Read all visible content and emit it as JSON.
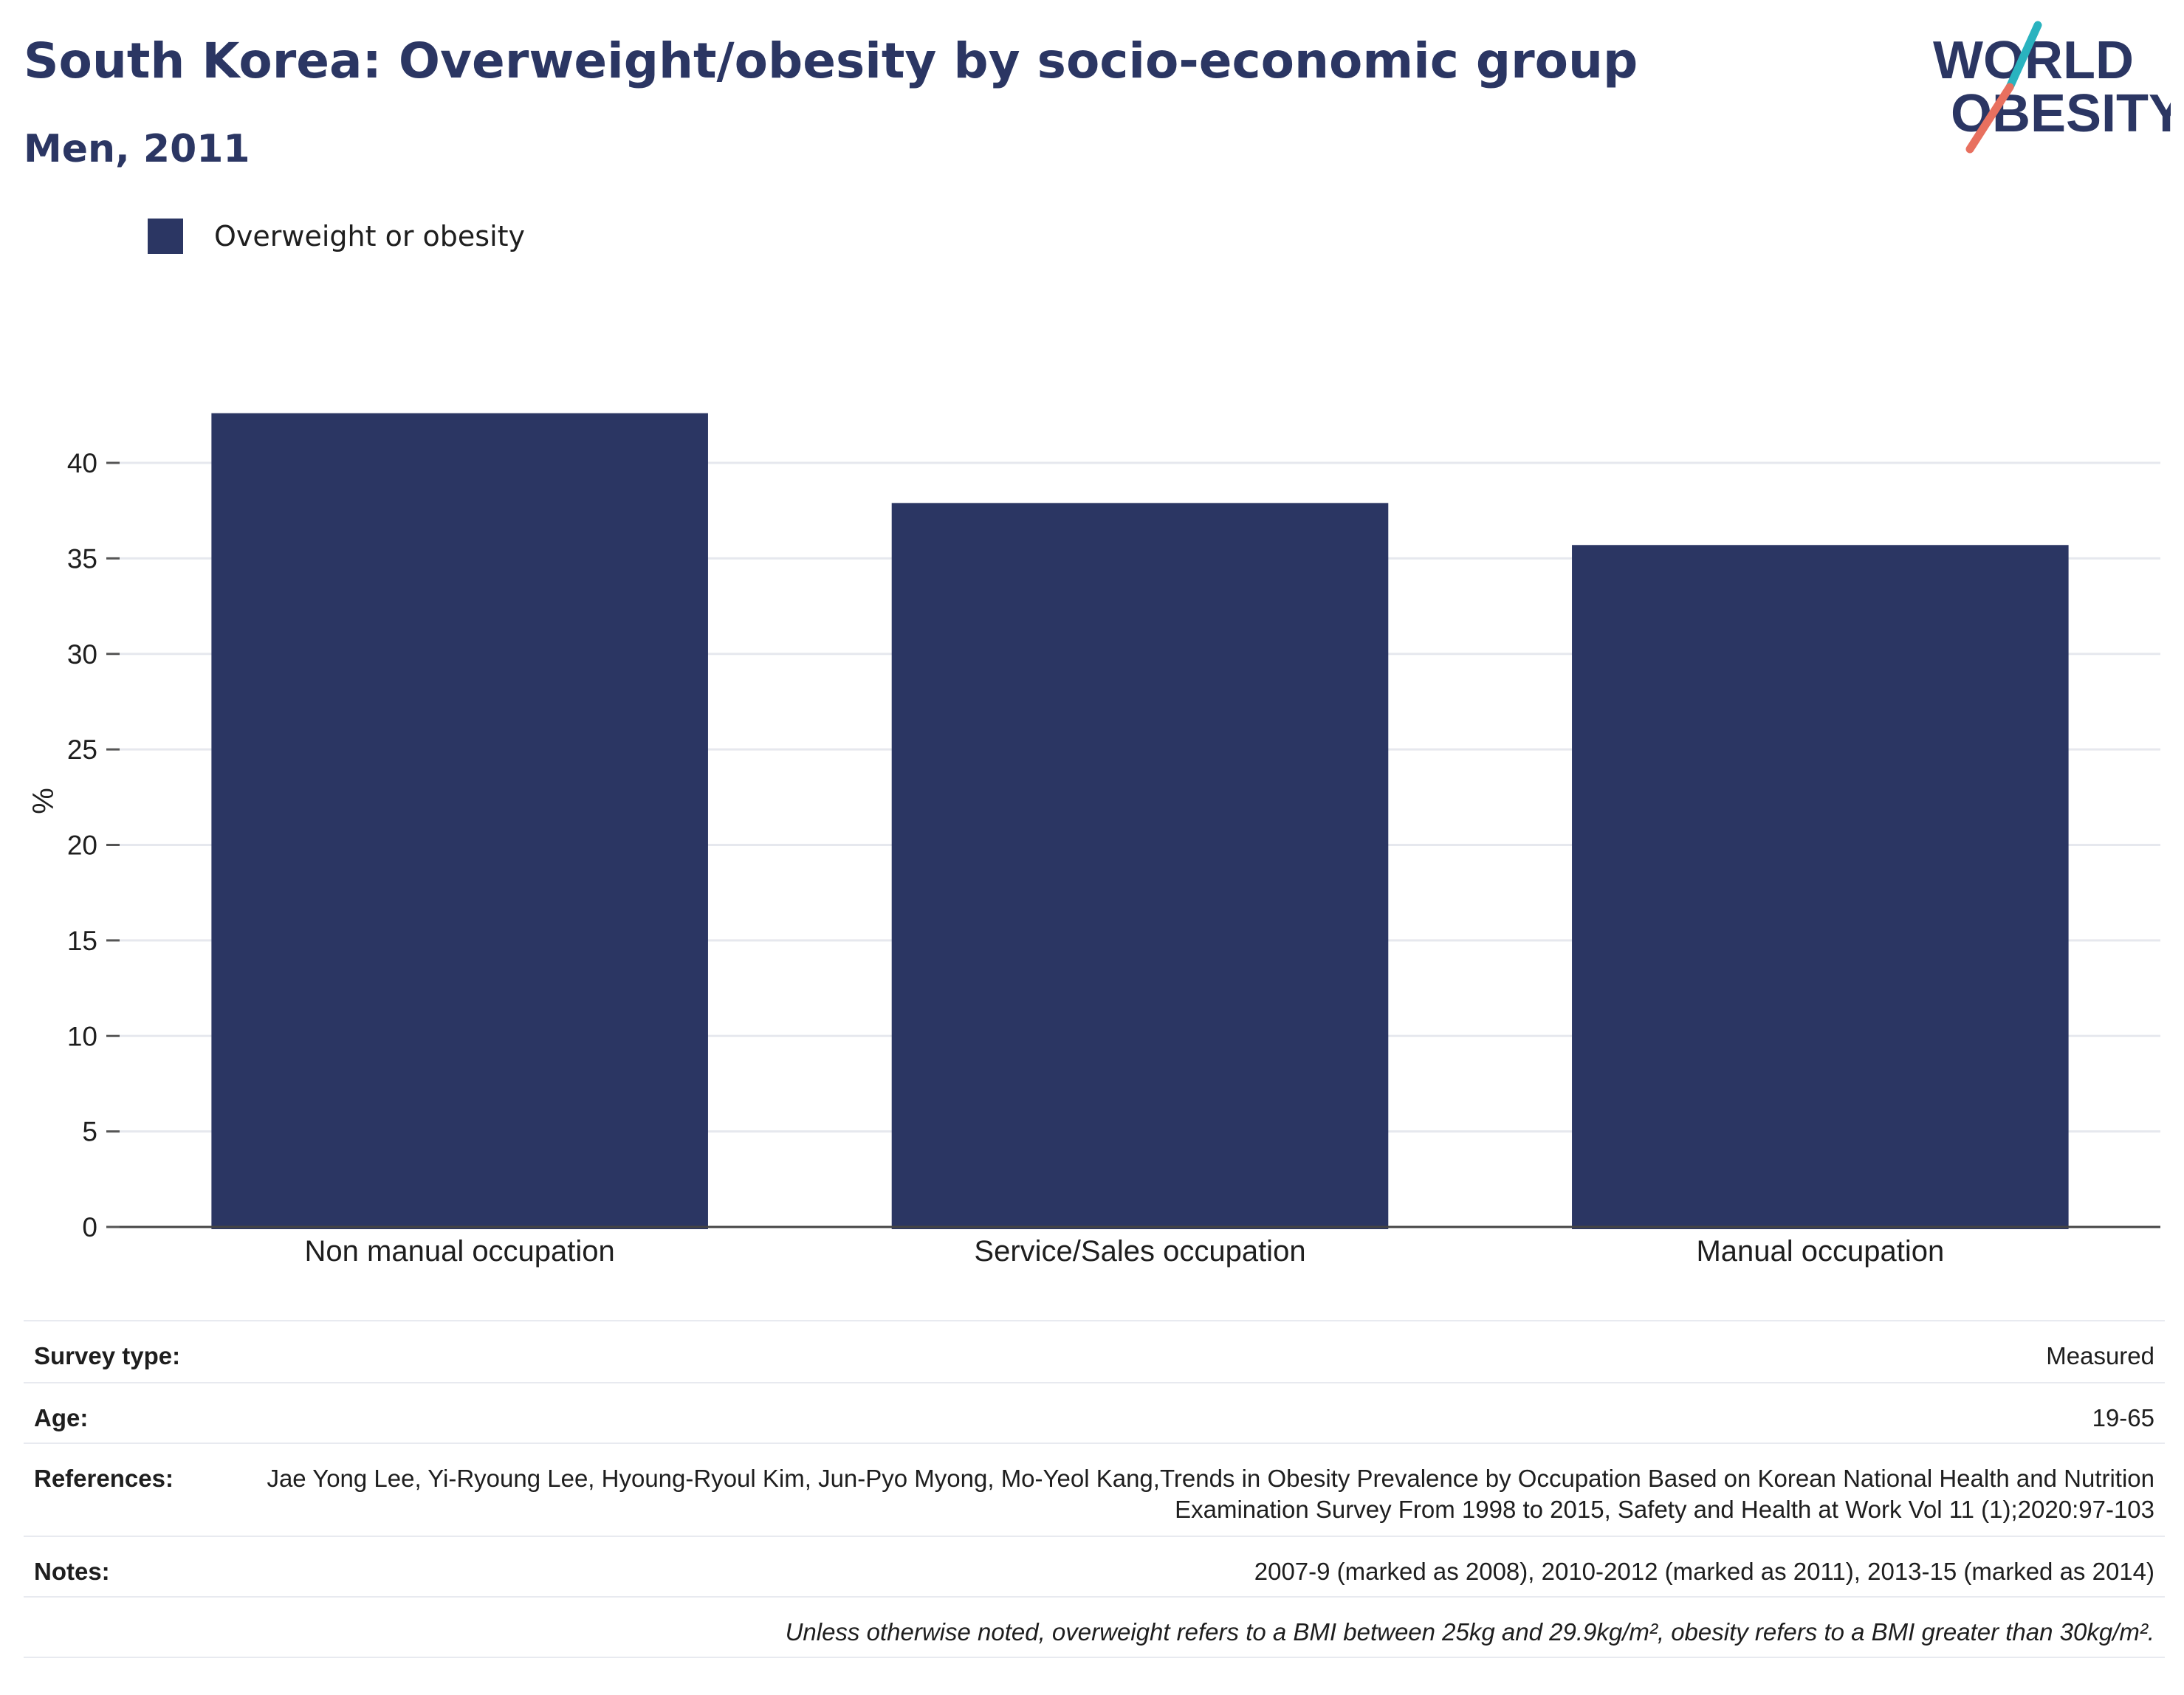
{
  "header": {
    "title": "South Korea: Overweight/obesity by socio-economic group",
    "subtitle": "Men, 2011"
  },
  "logo": {
    "line1": "WORLD",
    "line2": "OBESITY",
    "colors": {
      "text": "#2b3663",
      "teal": "#2ab3bf",
      "coral": "#e8705f"
    }
  },
  "legend": {
    "label": "Overweight or obesity",
    "color": "#2b3663"
  },
  "chart_data": {
    "type": "bar",
    "categories": [
      "Non manual occupation",
      "Service/Sales occupation",
      "Manual occupation"
    ],
    "series": [
      {
        "name": "Overweight or obesity",
        "values": [
          42.6,
          37.9,
          35.7
        ],
        "color": "#2b3663"
      }
    ],
    "ylabel": "%",
    "xlabel": "",
    "ylim": [
      0,
      45
    ],
    "yticks": [
      0,
      5,
      10,
      15,
      20,
      25,
      30,
      35,
      40
    ],
    "grid": true,
    "legend_position": "top-left"
  },
  "meta": {
    "survey_type_label": "Survey type:",
    "survey_type_value": "Measured",
    "age_label": "Age:",
    "age_value": "19-65",
    "references_label": "References:",
    "references_value": "Jae Yong Lee, Yi-Ryoung Lee, Hyoung-Ryoul Kim, Jun-Pyo Myong, Mo-Yeol Kang,Trends in Obesity Prevalence by Occupation Based on Korean National Health and Nutrition Examination Survey From 1998 to 2015, Safety and Health at Work Vol 11 (1);2020:97-103",
    "notes_label": "Notes:",
    "notes_value": "2007-9 (marked as 2008), 2010-2012 (marked as 2011), 2013-15 (marked as 2014)",
    "definition": "Unless otherwise noted, overweight refers to a BMI between 25kg and 29.9kg/m², obesity refers to a BMI greater than 30kg/m²."
  }
}
